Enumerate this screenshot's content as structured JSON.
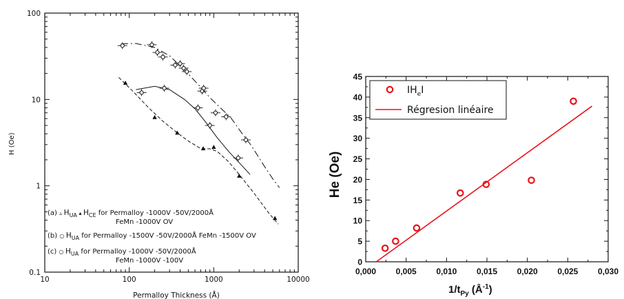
{
  "chart_data": [
    {
      "type": "scatter",
      "title": "",
      "xlabel": "Permalloy Thickness (Å)",
      "ylabel": "H (Oe)",
      "x_scale": "log",
      "y_scale": "log",
      "xlim": [
        10,
        10000
      ],
      "ylim": [
        0.1,
        100
      ],
      "x_ticks": [
        "10",
        "100",
        "1000",
        "10000"
      ],
      "y_ticks": [
        "100",
        "10",
        "1",
        "0.1"
      ],
      "grid": false,
      "legend": [
        {
          "tag": "(a)",
          "text": "H",
          "sub": "UA",
          "text2": "H",
          "sub2": "CE",
          "rest": "for Permalloy -1000V -50V/2000Å",
          "line2": "FeMn -1000V OV"
        },
        {
          "tag": "(b)",
          "text": "H",
          "sub": "UA",
          "rest": "for Permalloy -1500V -50V/2000Å FeMn -1500V OV"
        },
        {
          "tag": "(c)",
          "text": "H",
          "sub": "UA",
          "rest": "for Permalloy -1000V -50V/2000Å",
          "line2": "FeMn -1000V -100V"
        }
      ],
      "series": [
        {
          "marker": "open-circle",
          "x": [
            83,
            185,
            215,
            250,
            350,
            400,
            440,
            480,
            730,
            760
          ],
          "y": [
            42,
            43,
            35,
            31,
            25,
            26,
            23,
            21,
            12.5,
            13.5
          ],
          "curve_x": [
            80,
            120,
            200,
            300,
            450,
            650,
            900,
            1200,
            1600,
            2100,
            2800,
            3800,
            5000,
            6000
          ],
          "curve_y": [
            44,
            44.5,
            40,
            32,
            22,
            15,
            10.5,
            8,
            6.1,
            4.2,
            2.9,
            1.8,
            1.2,
            0.95
          ]
        },
        {
          "marker": "open-circle",
          "x": [
            140,
            260,
            650,
            900,
            1050,
            1400,
            1950,
            2400
          ],
          "y": [
            12,
            13.5,
            8,
            5,
            7,
            6.3,
            2.1,
            3.4
          ],
          "curve_x": [
            120,
            200,
            300,
            450,
            600,
            800,
            1100,
            1500,
            2000,
            2700
          ],
          "curve_y": [
            13,
            14.2,
            13,
            10,
            7.8,
            5.5,
            3.6,
            2.5,
            1.85,
            1.35
          ]
        },
        {
          "marker": "filled-triangle",
          "x": [
            90,
            200,
            370,
            750,
            1000,
            2000,
            5300
          ],
          "y": [
            15.5,
            6.2,
            4.1,
            2.7,
            2.8,
            1.3,
            0.42
          ],
          "curve_x": [
            75,
            110,
            170,
            250,
            370,
            500,
            700,
            900,
            1100,
            1500,
            2000,
            3000,
            4500,
            5800
          ],
          "curve_y": [
            18,
            12.5,
            8,
            5.6,
            4.1,
            3.3,
            2.7,
            2.68,
            2.5,
            1.9,
            1.35,
            0.82,
            0.48,
            0.36
          ]
        }
      ]
    },
    {
      "type": "scatter",
      "title": "",
      "xlabel": "1/t",
      "xlabel_sub": "Py",
      "xlabel_unit": "(Å",
      "xlabel_sup": "-1",
      "xlabel_close": ")",
      "ylabel": "He (Oe)",
      "xlim": [
        0.0,
        0.03
      ],
      "ylim": [
        0,
        45
      ],
      "x_ticks": [
        "0,000",
        "0,005",
        "0,010",
        "0,015",
        "0,020",
        "0,025",
        "0,030"
      ],
      "y_ticks": [
        "0",
        "5",
        "10",
        "15",
        "20",
        "25",
        "30",
        "35",
        "40",
        "45"
      ],
      "grid": false,
      "legend_position": "top-left",
      "legend": [
        {
          "name": "IH",
          "sub": "e",
          "name2": "I",
          "marker": "open-circle",
          "color": "#e8141b"
        },
        {
          "name": "Régresion linéaire",
          "marker": "line",
          "color": "#e8141b"
        }
      ],
      "series": [
        {
          "name": "IHeI",
          "x": [
            0.0024,
            0.0037,
            0.0063,
            0.0117,
            0.0149,
            0.0205,
            0.0257
          ],
          "y": [
            3.3,
            5.0,
            8.2,
            16.7,
            18.8,
            19.8,
            39.0
          ]
        },
        {
          "name": "Régresion linéaire",
          "x": [
            0.0013,
            0.028
          ],
          "y": [
            0.0,
            37.8
          ]
        }
      ]
    }
  ],
  "colors": {
    "ink": "#111111",
    "accent": "#e8141b"
  }
}
